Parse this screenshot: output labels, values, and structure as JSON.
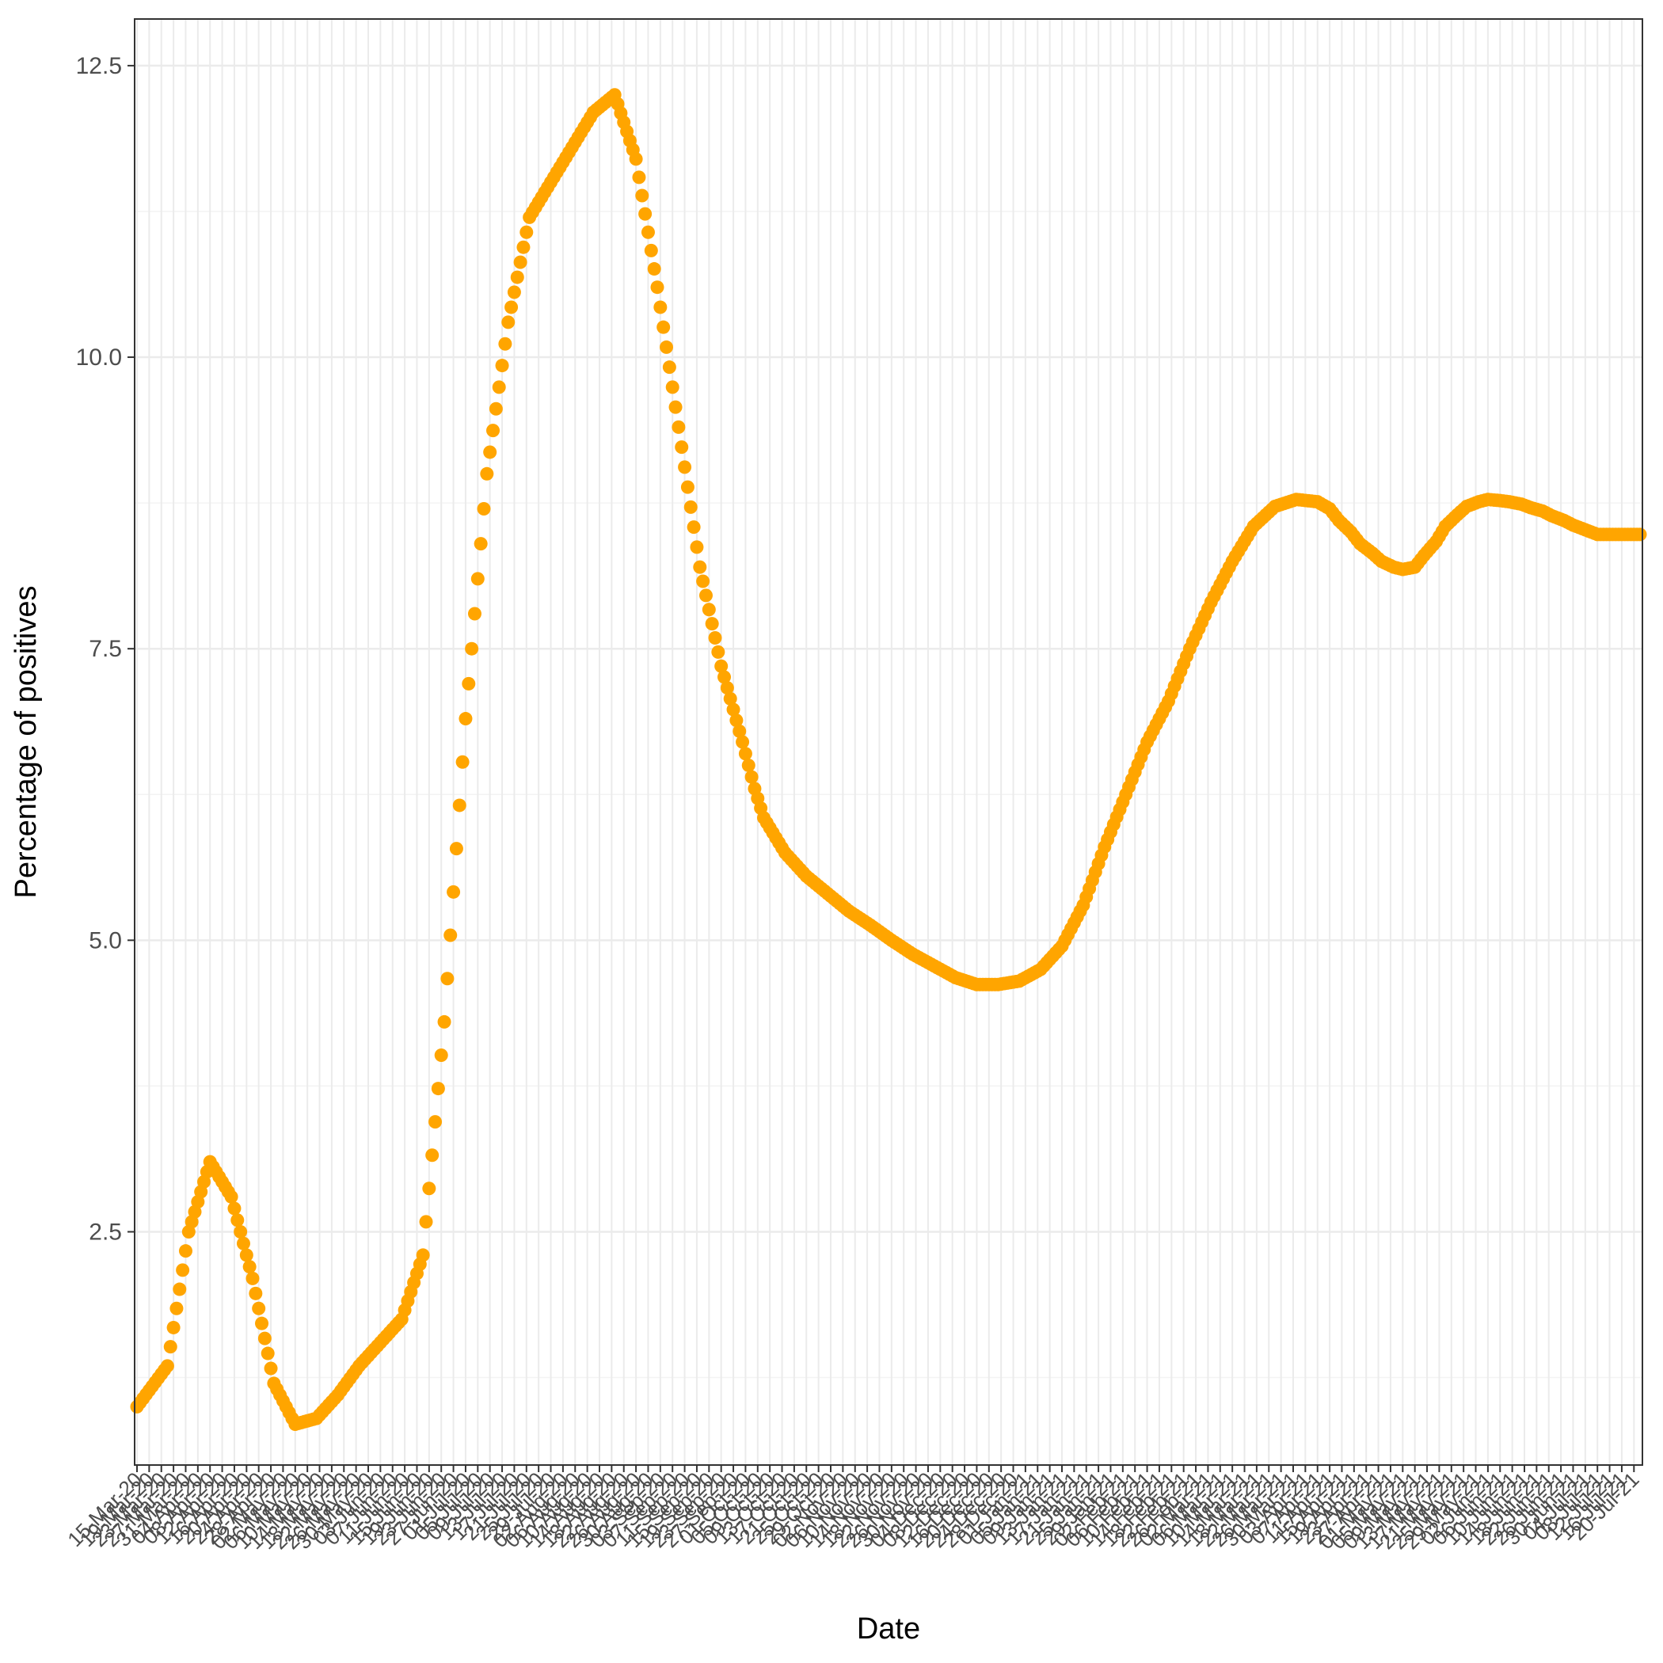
{
  "chart_data": {
    "type": "scatter",
    "title": "",
    "xlabel": "Date",
    "ylabel": "Percentage of positives",
    "ylim": [
      0.5,
      12.9
    ],
    "yticks": [
      2.5,
      5.0,
      7.5,
      10.0,
      12.5
    ],
    "ytick_labels": [
      "2.5",
      "5.0",
      "7.5",
      "10.0",
      "12.5"
    ],
    "x_start": "2020-03-15",
    "x_end": "2021-07-22",
    "x_tick_interval_days": 4,
    "x_tick_label_format": "DD-Mon-YY",
    "grid": true,
    "legend": "none",
    "point_color": "#FFA500",
    "series": [
      {
        "x": [
          "2020-03-15",
          "2020-03-25",
          "2020-04-01",
          "2020-04-08",
          "2020-04-15",
          "2020-04-22",
          "2020-04-29",
          "2020-05-06",
          "2020-05-13",
          "2020-05-20",
          "2020-05-27",
          "2020-06-03",
          "2020-06-10",
          "2020-06-17",
          "2020-06-24",
          "2020-07-01",
          "2020-07-08",
          "2020-07-15",
          "2020-07-22",
          "2020-07-29",
          "2020-08-05",
          "2020-08-12",
          "2020-08-19",
          "2020-08-26",
          "2020-09-02",
          "2020-09-09",
          "2020-09-16",
          "2020-09-23",
          "2020-09-30",
          "2020-10-04",
          "2020-10-07",
          "2020-10-14",
          "2020-10-21",
          "2020-10-28",
          "2020-11-04",
          "2020-11-11",
          "2020-11-18",
          "2020-11-25",
          "2020-12-02",
          "2020-12-09",
          "2020-12-16",
          "2020-12-23",
          "2020-12-30",
          "2021-01-06",
          "2021-01-13",
          "2021-01-20",
          "2021-01-27",
          "2021-02-03",
          "2021-02-10",
          "2021-02-17",
          "2021-02-24",
          "2021-03-03",
          "2021-03-10",
          "2021-03-17",
          "2021-03-24",
          "2021-03-31",
          "2021-04-07",
          "2021-04-11",
          "2021-04-14",
          "2021-04-18",
          "2021-04-21",
          "2021-04-25",
          "2021-04-28",
          "2021-05-02",
          "2021-05-05",
          "2021-05-09",
          "2021-05-12",
          "2021-05-16",
          "2021-05-19",
          "2021-05-23",
          "2021-05-26",
          "2021-05-30",
          "2021-06-02",
          "2021-06-06",
          "2021-06-09",
          "2021-06-13",
          "2021-06-16",
          "2021-06-20",
          "2021-06-23",
          "2021-06-27",
          "2021-06-30",
          "2021-07-04",
          "2021-07-08",
          "2021-07-12",
          "2021-07-15",
          "2021-07-19",
          "2021-07-22"
        ],
        "y": [
          1.0,
          1.35,
          2.5,
          3.1,
          2.8,
          2.1,
          1.2,
          0.85,
          0.9,
          1.1,
          1.35,
          1.55,
          1.75,
          2.3,
          4.3,
          6.9,
          9.0,
          10.3,
          11.2,
          11.5,
          11.8,
          12.1,
          12.25,
          11.7,
          10.6,
          9.4,
          8.2,
          7.35,
          6.7,
          6.3,
          6.05,
          5.75,
          5.55,
          5.4,
          5.25,
          5.13,
          5.0,
          4.88,
          4.78,
          4.68,
          4.62,
          4.62,
          4.65,
          4.75,
          4.95,
          5.3,
          5.8,
          6.25,
          6.7,
          7.05,
          7.5,
          7.9,
          8.25,
          8.55,
          8.72,
          8.78,
          8.76,
          8.7,
          8.6,
          8.5,
          8.4,
          8.32,
          8.25,
          8.2,
          8.18,
          8.2,
          8.3,
          8.42,
          8.55,
          8.65,
          8.72,
          8.76,
          8.78,
          8.77,
          8.76,
          8.74,
          8.71,
          8.68,
          8.64,
          8.6,
          8.56,
          8.52,
          8.48,
          8.48,
          8.48,
          8.48,
          8.48
        ]
      }
    ]
  }
}
